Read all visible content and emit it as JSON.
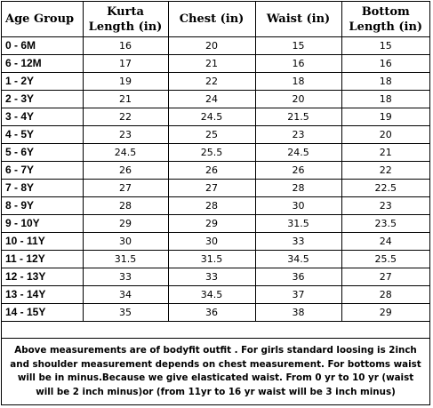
{
  "table": {
    "headers": {
      "age_group": "Age Group",
      "kurta_length": [
        "Kurta",
        "Length (in)"
      ],
      "chest": "Chest (in)",
      "waist": "Waist (in)",
      "bottom_length": [
        "Bottom",
        "Length (in)"
      ]
    },
    "rows": [
      [
        "0 - 6M",
        "16",
        "20",
        "15",
        "15"
      ],
      [
        "6 - 12M",
        "17",
        "21",
        "16",
        "16"
      ],
      [
        "1 - 2Y",
        "19",
        "22",
        "18",
        "18"
      ],
      [
        "2 - 3Y",
        "21",
        "24",
        "20",
        "18"
      ],
      [
        "3 - 4Y",
        "22",
        "24.5",
        "21.5",
        "19"
      ],
      [
        "4 - 5Y",
        "23",
        "25",
        "23",
        "20"
      ],
      [
        "5 - 6Y",
        "24.5",
        "25.5",
        "24.5",
        "21"
      ],
      [
        "6 - 7Y",
        "26",
        "26",
        "26",
        "22"
      ],
      [
        "7 - 8Y",
        "27",
        "27",
        "28",
        "22.5"
      ],
      [
        "8 - 9Y",
        "28",
        "28",
        "30",
        "23"
      ],
      [
        "9 - 10Y",
        "29",
        "29",
        "31.5",
        "23.5"
      ],
      [
        "10 - 11Y",
        "30",
        "30",
        "33",
        "24"
      ],
      [
        "11 - 12Y",
        "31.5",
        "31.5",
        "34.5",
        "25.5"
      ],
      [
        "12 - 13Y",
        "33",
        "33",
        "36",
        "27"
      ],
      [
        "13 - 14Y",
        "34",
        "34.5",
        "37",
        "28"
      ],
      [
        "14 - 15Y",
        "35",
        "36",
        "38",
        "29"
      ]
    ]
  },
  "note": "Above measurements are of bodyfit outfit . For girls standard loosing is 2inch and shoulder measurement depends on chest measurement. For bottoms waist will be in minus.Because we give elasticated waist. From 0 yr to 10 yr (waist will be 2 inch minus)or (from 11yr to 16 yr waist will be 3 inch minus)"
}
